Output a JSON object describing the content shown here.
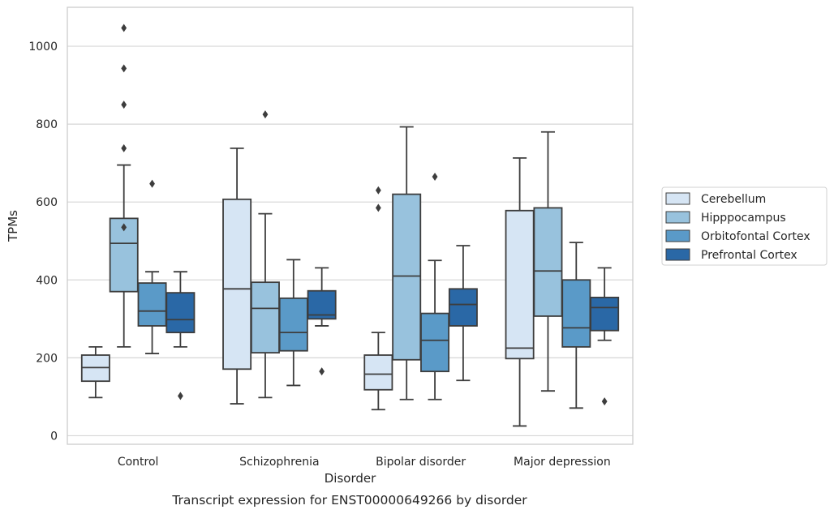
{
  "chart_data": {
    "type": "box",
    "title": "",
    "caption": "Transcript expression for ENST00000649266 by disorder",
    "xlabel": "Disorder",
    "ylabel": "TPMs",
    "ylim": [
      -22,
      1100
    ],
    "yticks": [
      0,
      200,
      400,
      600,
      800,
      1000
    ],
    "grid": true,
    "legend_position": "right",
    "categories": [
      "Control",
      "Schizophrenia",
      "Bipolar disorder",
      "Major depression"
    ],
    "series": [
      {
        "name": "Cerebellum",
        "color": "#d6e5f4",
        "boxes": [
          {
            "whisker_low": 98,
            "q1": 140,
            "median": 175,
            "q3": 207,
            "whisker_high": 228,
            "outliers": []
          },
          {
            "whisker_low": 82,
            "q1": 171,
            "median": 377,
            "q3": 607,
            "whisker_high": 738,
            "outliers": []
          },
          {
            "whisker_low": 67,
            "q1": 118,
            "median": 158,
            "q3": 207,
            "whisker_high": 265,
            "outliers": [
              585,
              630
            ]
          },
          {
            "whisker_low": 25,
            "q1": 198,
            "median": 225,
            "q3": 578,
            "whisker_high": 713,
            "outliers": []
          }
        ]
      },
      {
        "name": "Hipppocampus",
        "color": "#98c2dd",
        "boxes": [
          {
            "whisker_low": 228,
            "q1": 370,
            "median": 494,
            "q3": 558,
            "whisker_high": 695,
            "outliers": [
              535,
              738,
              850,
              943,
              1047
            ]
          },
          {
            "whisker_low": 98,
            "q1": 213,
            "median": 327,
            "q3": 394,
            "whisker_high": 570,
            "outliers": [
              825
            ]
          },
          {
            "whisker_low": 93,
            "q1": 195,
            "median": 410,
            "q3": 620,
            "whisker_high": 793,
            "outliers": []
          },
          {
            "whisker_low": 115,
            "q1": 307,
            "median": 423,
            "q3": 585,
            "whisker_high": 780,
            "outliers": []
          }
        ]
      },
      {
        "name": "Orbitofontal Cortex",
        "color": "#5a9ac8",
        "boxes": [
          {
            "whisker_low": 211,
            "q1": 282,
            "median": 320,
            "q3": 392,
            "whisker_high": 421,
            "outliers": [
              647
            ]
          },
          {
            "whisker_low": 129,
            "q1": 218,
            "median": 265,
            "q3": 353,
            "whisker_high": 452,
            "outliers": []
          },
          {
            "whisker_low": 93,
            "q1": 165,
            "median": 245,
            "q3": 314,
            "whisker_high": 450,
            "outliers": [
              665
            ]
          },
          {
            "whisker_low": 71,
            "q1": 228,
            "median": 277,
            "q3": 400,
            "whisker_high": 496,
            "outliers": []
          }
        ]
      },
      {
        "name": "Prefrontal Cortex",
        "color": "#2a68a6",
        "boxes": [
          {
            "whisker_low": 228,
            "q1": 265,
            "median": 298,
            "q3": 367,
            "whisker_high": 421,
            "outliers": [
              102
            ]
          },
          {
            "whisker_low": 282,
            "q1": 300,
            "median": 310,
            "q3": 372,
            "whisker_high": 431,
            "outliers": [
              165
            ]
          },
          {
            "whisker_low": 142,
            "q1": 282,
            "median": 337,
            "q3": 377,
            "whisker_high": 488,
            "outliers": []
          },
          {
            "whisker_low": 245,
            "q1": 270,
            "median": 329,
            "q3": 355,
            "whisker_high": 431,
            "outliers": [
              88
            ]
          }
        ]
      }
    ]
  }
}
